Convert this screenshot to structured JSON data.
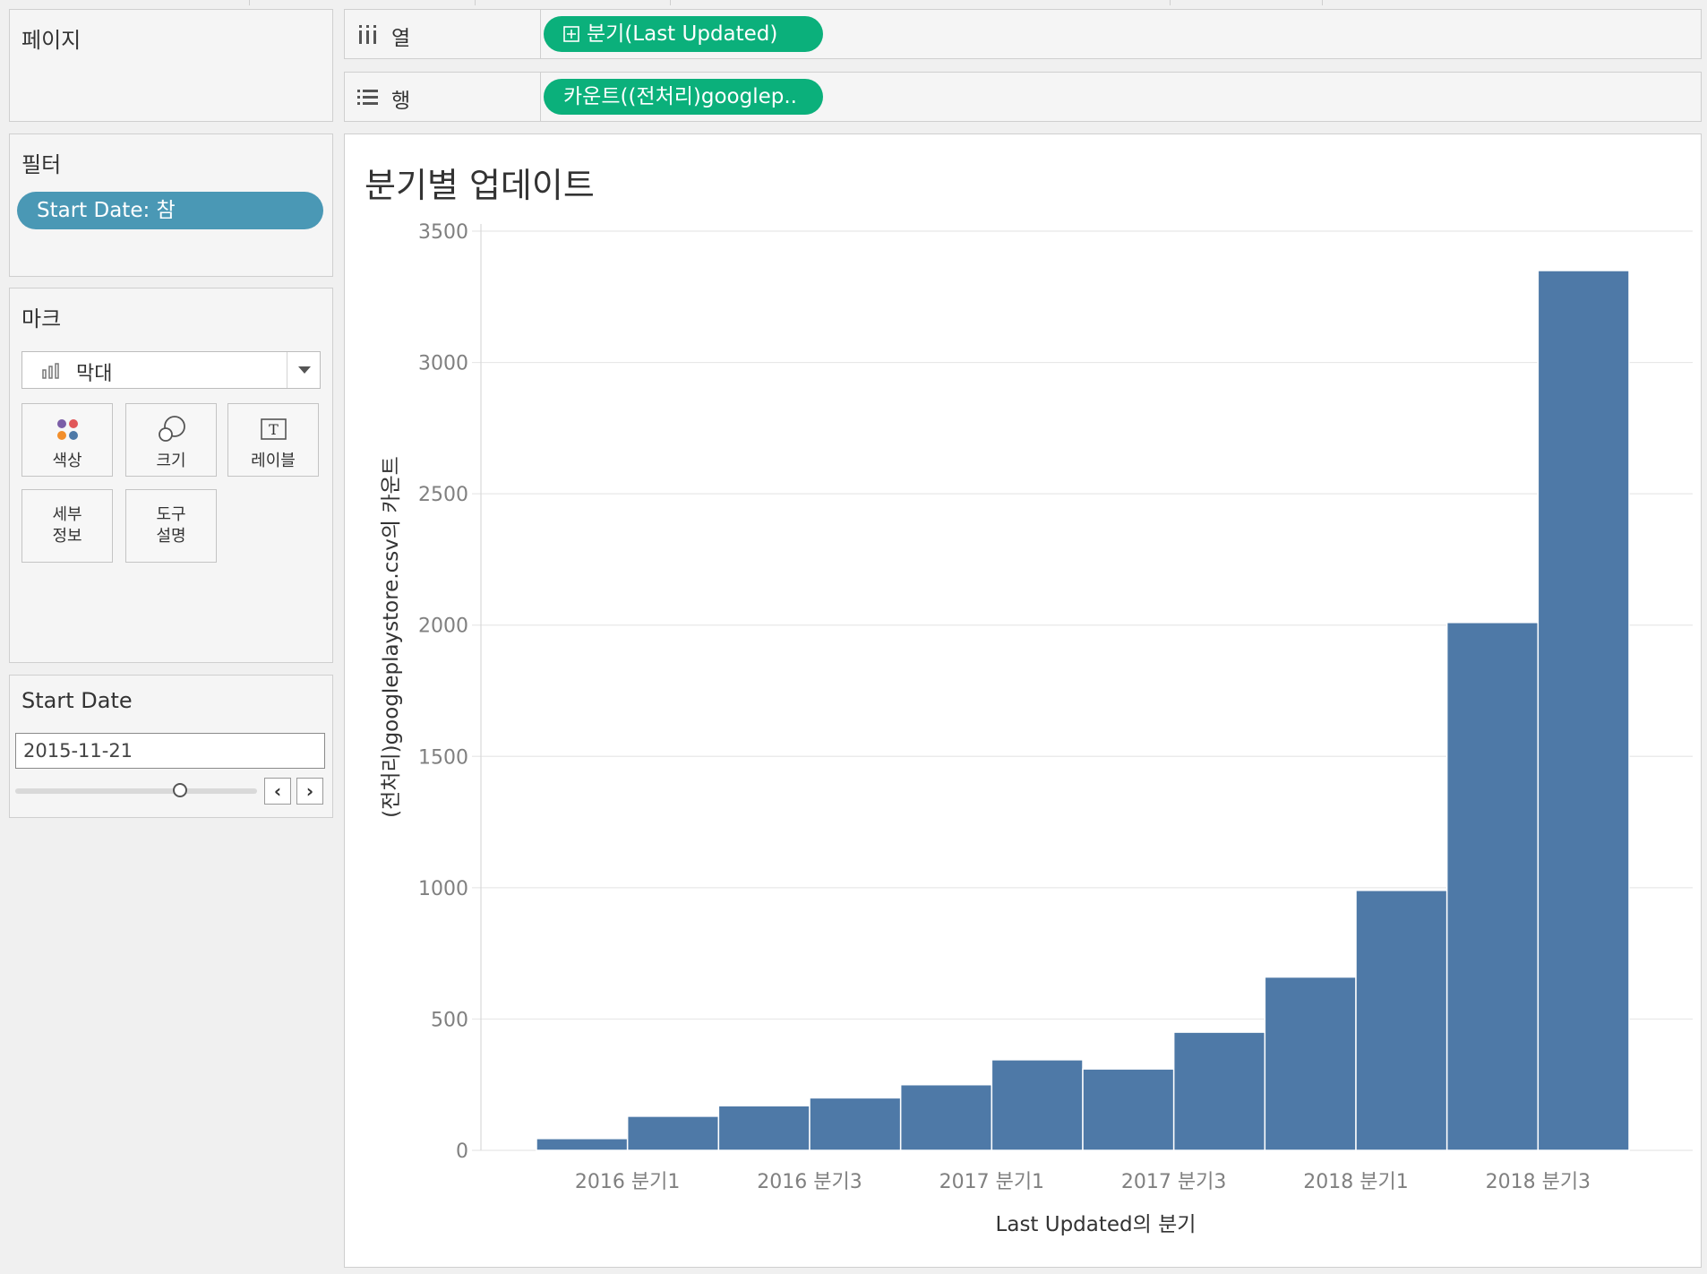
{
  "panels": {
    "pages": {
      "title": "페이지"
    },
    "filters": {
      "title": "필터",
      "pill": "Start Date: 참"
    },
    "marks": {
      "title": "마크",
      "type": "막대",
      "buttons": [
        {
          "label1": "색상",
          "label2": ""
        },
        {
          "label1": "크기",
          "label2": ""
        },
        {
          "label1": "레이블",
          "label2": ""
        },
        {
          "label1": "세부",
          "label2": "정보"
        },
        {
          "label1": "도구",
          "label2": "설명"
        }
      ]
    },
    "start_date": {
      "title": "Start Date",
      "value": "2015-11-21",
      "prev": "‹",
      "next": "›"
    }
  },
  "shelves": {
    "columns": {
      "name": "열",
      "pill": "분기(Last Updated)"
    },
    "rows": {
      "name": "행",
      "pill": "카운트((전처리)googlep.."
    }
  },
  "colors": {
    "bar": "#4e79a7",
    "pill_green": "#0bb07b",
    "pill_filter": "#4a98b5"
  },
  "chart_data": {
    "type": "bar",
    "title": "분기별 업데이트",
    "xlabel": "Last Updated의 분기",
    "ylabel": "(전처리)googleplaystore.csv의 카운트",
    "ylim": [
      0,
      3500
    ],
    "yticks": [
      0,
      500,
      1000,
      1500,
      2000,
      2500,
      3000,
      3500
    ],
    "grid": true,
    "categories": [
      "2016 분기1",
      "2016 분기2",
      "2016 분기3",
      "2016 분기4",
      "2017 분기1",
      "2017 분기2",
      "2017 분기3",
      "2017 분기4",
      "2018 분기1",
      "2018 분기2",
      "2018 분기3",
      "2018 분기4"
    ],
    "shown_tick_labels": [
      "2016 분기1",
      "2016 분기3",
      "2017 분기1",
      "2017 분기3",
      "2018 분기1",
      "2018 분기3"
    ],
    "values": [
      45,
      130,
      170,
      200,
      250,
      345,
      310,
      450,
      660,
      990,
      2010,
      3350
    ]
  }
}
